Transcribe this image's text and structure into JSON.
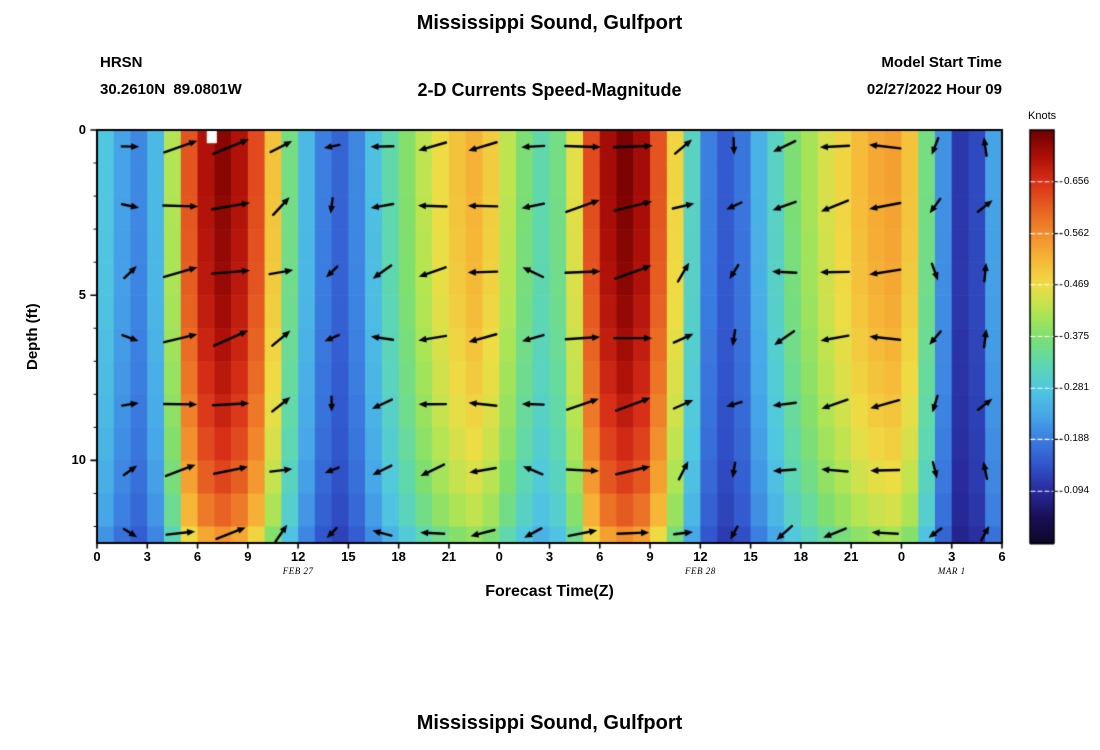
{
  "figure": {
    "title": "Mississippi Sound, Gulfport",
    "station_id": "HRSN",
    "station_location": "30.2610N  89.0801W",
    "subtitle": "2-D Currents Speed-Magnitude",
    "model_start_label": "Model Start Time",
    "model_start_value": "02/27/2022 Hour 09",
    "xlabel": "Forecast Time(Z)",
    "ylabel": "Depth (ft)",
    "colorbar_title": "Knots"
  },
  "next_figure": {
    "title": "Mississippi Sound, Gulfport"
  },
  "chart_data": {
    "type": "heatmap",
    "title": "Mississippi Sound, Gulfport",
    "subtitle": "2-D Currents Speed-Magnitude",
    "xlabel": "Forecast Time(Z)",
    "ylabel": "Depth (ft)",
    "colorbar_label": "Knots",
    "x_range_hours": [
      0,
      54
    ],
    "depth_range_ft": [
      0,
      12.5
    ],
    "value_range_knots": [
      0,
      0.75
    ],
    "x_ticks": [
      {
        "hour": 0,
        "label": "0"
      },
      {
        "hour": 3,
        "label": "3"
      },
      {
        "hour": 6,
        "label": "6"
      },
      {
        "hour": 9,
        "label": "9"
      },
      {
        "hour": 12,
        "label": "12"
      },
      {
        "hour": 15,
        "label": "15"
      },
      {
        "hour": 18,
        "label": "18"
      },
      {
        "hour": 21,
        "label": "21"
      },
      {
        "hour": 24,
        "label": "0"
      },
      {
        "hour": 27,
        "label": "3"
      },
      {
        "hour": 30,
        "label": "6"
      },
      {
        "hour": 33,
        "label": "9"
      },
      {
        "hour": 36,
        "label": "12"
      },
      {
        "hour": 39,
        "label": "15"
      },
      {
        "hour": 42,
        "label": "18"
      },
      {
        "hour": 45,
        "label": "21"
      },
      {
        "hour": 48,
        "label": "0"
      },
      {
        "hour": 51,
        "label": "3"
      },
      {
        "hour": 54,
        "label": "6"
      }
    ],
    "date_annotations": [
      {
        "hour": 12,
        "label": "FEB 27"
      },
      {
        "hour": 36,
        "label": "FEB 28"
      },
      {
        "hour": 51,
        "label": "MAR 1"
      }
    ],
    "y_ticks": [
      {
        "ft": 0,
        "label": "0"
      },
      {
        "ft": 5,
        "label": "5"
      },
      {
        "ft": 10,
        "label": "10"
      }
    ],
    "colorbar_ticks": [
      0.094,
      0.188,
      0.281,
      0.375,
      0.469,
      0.562,
      0.656
    ],
    "colormap_stops": [
      {
        "v": 0.0,
        "c": "#0c0826"
      },
      {
        "v": 0.047,
        "c": "#190f55"
      },
      {
        "v": 0.094,
        "c": "#282a9b"
      },
      {
        "v": 0.141,
        "c": "#3153cb"
      },
      {
        "v": 0.188,
        "c": "#3b7de0"
      },
      {
        "v": 0.234,
        "c": "#47a7e8"
      },
      {
        "v": 0.281,
        "c": "#50c8e0"
      },
      {
        "v": 0.328,
        "c": "#5fd8ae"
      },
      {
        "v": 0.375,
        "c": "#7fdf6e"
      },
      {
        "v": 0.422,
        "c": "#b4e552"
      },
      {
        "v": 0.469,
        "c": "#eedd44"
      },
      {
        "v": 0.516,
        "c": "#f6b637"
      },
      {
        "v": 0.562,
        "c": "#f28c2c"
      },
      {
        "v": 0.609,
        "c": "#e65f22"
      },
      {
        "v": 0.656,
        "c": "#d93118"
      },
      {
        "v": 0.703,
        "c": "#ad0f08"
      },
      {
        "v": 0.75,
        "c": "#6e0000"
      }
    ],
    "surface_speed_knots_by_hour": [
      0.28,
      0.23,
      0.2,
      0.26,
      0.42,
      0.62,
      0.7,
      0.73,
      0.7,
      0.63,
      0.5,
      0.36,
      0.26,
      0.19,
      0.16,
      0.2,
      0.27,
      0.33,
      0.38,
      0.43,
      0.47,
      0.5,
      0.52,
      0.49,
      0.43,
      0.37,
      0.33,
      0.36,
      0.46,
      0.63,
      0.71,
      0.74,
      0.71,
      0.62,
      0.48,
      0.31,
      0.19,
      0.15,
      0.18,
      0.25,
      0.31,
      0.37,
      0.41,
      0.45,
      0.48,
      0.51,
      0.53,
      0.54,
      0.5,
      0.36,
      0.21,
      0.11,
      0.13,
      0.23,
      0.29
    ],
    "depth_attenuation_by_ft": [
      1.0,
      1.0,
      0.995,
      0.99,
      0.985,
      0.975,
      0.96,
      0.945,
      0.925,
      0.9,
      0.87,
      0.83,
      0.76
    ],
    "missing_data_region": {
      "hour_start": 6.55,
      "hour_end": 7.15,
      "ft_start": 0,
      "ft_end": 0.4
    },
    "arrows": {
      "hours": [
        2,
        5,
        8,
        11,
        14,
        17,
        20,
        23,
        26,
        29,
        32,
        35,
        38,
        41,
        44,
        47,
        50,
        53
      ],
      "depths_ft": [
        0.5,
        2.3,
        4.3,
        6.3,
        8.3,
        10.3,
        12.2
      ],
      "base_direction_deg": [
        8,
        10,
        12,
        30,
        230,
        195,
        190,
        185,
        178,
        8,
        12,
        35,
        235,
        195,
        190,
        185,
        255,
        70
      ]
    }
  }
}
